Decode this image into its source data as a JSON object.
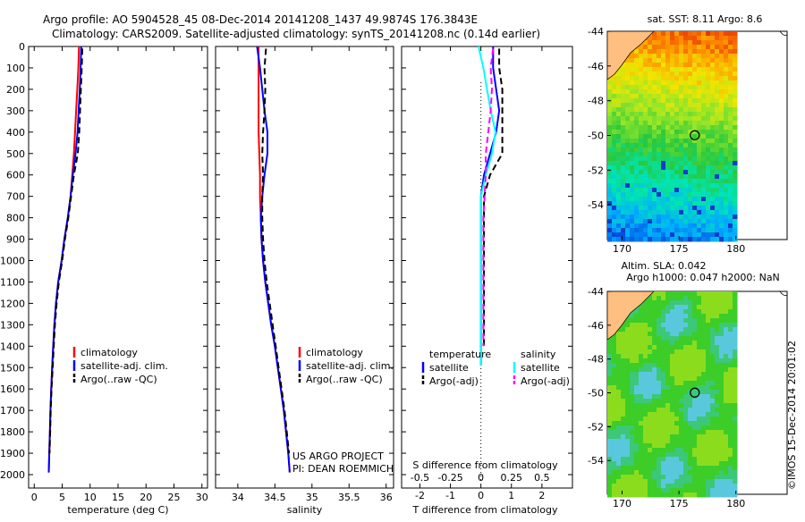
{
  "header": {
    "line1": "Argo profile: AO 5904528_45 08-Dec-2014 20141208_1437 49.9874S 176.3843E",
    "line2": "Climatology: CARS2009. Satellite-adjusted climatology: synTS_20141208.nc (0.14d earlier)"
  },
  "colors": {
    "climatology": "#ff0000",
    "satellite": "#0000ff",
    "argo": "#000000",
    "salinity_satellite": "#00ffff",
    "salinity_argo": "#ff00ff",
    "land": "#ffbf80"
  },
  "chart_data": [
    {
      "type": "line",
      "xlabel": "temperature (deg C)",
      "xlim": [
        -1,
        31
      ],
      "xticks": [
        0,
        5,
        10,
        15,
        20,
        25,
        30
      ],
      "ylim": [
        0,
        2050
      ],
      "yticks": [
        0,
        100,
        200,
        300,
        400,
        500,
        600,
        700,
        800,
        900,
        1000,
        1100,
        1200,
        1300,
        1400,
        1500,
        1600,
        1700,
        1800,
        1900,
        2000
      ],
      "y_reversed": true,
      "legend": [
        "climatology",
        "satellite-adj. clim.",
        "Argo(..raw -QC)"
      ],
      "series": [
        {
          "name": "climatology",
          "dash": "solid",
          "x": [
            8.0,
            7.9,
            7.7,
            7.5,
            7.3,
            7.1,
            6.8,
            6.5,
            6.0,
            5.4,
            4.9,
            4.3,
            3.9,
            3.6,
            3.4,
            3.2,
            3.05,
            2.9,
            2.8,
            2.7,
            2.6
          ],
          "y": [
            0,
            100,
            200,
            300,
            400,
            500,
            600,
            700,
            800,
            900,
            1000,
            1100,
            1200,
            1300,
            1400,
            1500,
            1600,
            1700,
            1800,
            1900,
            1990
          ]
        },
        {
          "name": "satellite-adj. clim.",
          "dash": "solid",
          "x": [
            8.4,
            8.3,
            8.15,
            7.95,
            7.75,
            7.4,
            6.9,
            6.5,
            6.0,
            5.4,
            4.9,
            4.3,
            3.9,
            3.6,
            3.4,
            3.2,
            3.05,
            2.9,
            2.8,
            2.7,
            2.6
          ],
          "y": [
            0,
            100,
            200,
            300,
            400,
            500,
            600,
            700,
            800,
            900,
            1000,
            1100,
            1200,
            1300,
            1400,
            1500,
            1600,
            1700,
            1800,
            1900,
            1990
          ]
        },
        {
          "name": "Argo(..raw -QC)",
          "dash": "dash",
          "x": [
            8.6,
            8.5,
            8.35,
            8.2,
            8.05,
            7.8,
            7.1,
            6.6,
            6.1,
            5.5,
            5.0,
            4.4,
            4.0,
            3.7,
            3.5,
            3.3,
            3.1,
            2.95,
            2.85,
            2.75
          ],
          "y": [
            10,
            100,
            200,
            300,
            400,
            500,
            600,
            700,
            800,
            900,
            1000,
            1100,
            1200,
            1300,
            1400,
            1500,
            1600,
            1700,
            1800,
            1900
          ]
        }
      ]
    },
    {
      "type": "line",
      "xlabel": "salinity",
      "xlim": [
        33.7,
        36.1
      ],
      "xticks": [
        34,
        34.5,
        35,
        35.5,
        36
      ],
      "xticklabels": [
        "34",
        "34.5",
        "35",
        "35.5",
        "36"
      ],
      "ylim": [
        0,
        2050
      ],
      "y_reversed": true,
      "legend": [
        "climatology",
        "satellite-adj. clim.",
        "Argo(..raw -QC)"
      ],
      "annotation": [
        "US ARGO PROJECT",
        "PI: DEAN ROEMMICH"
      ],
      "series": [
        {
          "name": "climatology",
          "dash": "solid",
          "x": [
            34.28,
            34.28,
            34.28,
            34.28,
            34.28,
            34.29,
            34.3,
            34.3,
            34.31,
            34.32,
            34.34,
            34.37,
            34.41,
            34.45,
            34.5,
            34.54,
            34.58,
            34.62,
            34.65,
            34.68,
            34.7
          ],
          "y": [
            0,
            100,
            200,
            300,
            400,
            500,
            600,
            700,
            800,
            900,
            1000,
            1100,
            1200,
            1300,
            1400,
            1500,
            1600,
            1700,
            1800,
            1900,
            1990
          ]
        },
        {
          "name": "satellite-adj. clim.",
          "dash": "solid",
          "x": [
            34.26,
            34.3,
            34.33,
            34.36,
            34.4,
            34.4,
            34.36,
            34.33,
            34.31,
            34.32,
            34.34,
            34.37,
            34.41,
            34.45,
            34.5,
            34.54,
            34.58,
            34.62,
            34.65,
            34.68,
            34.7
          ],
          "y": [
            0,
            100,
            200,
            300,
            400,
            500,
            600,
            700,
            800,
            900,
            1000,
            1100,
            1200,
            1300,
            1400,
            1500,
            1600,
            1700,
            1800,
            1900,
            1990
          ]
        },
        {
          "name": "Argo(..raw -QC)",
          "dash": "dash",
          "x": [
            34.38,
            34.36,
            34.37,
            34.36,
            34.34,
            34.33,
            34.34,
            34.33,
            34.33,
            34.34,
            34.36,
            34.39,
            34.43,
            34.47,
            34.51,
            34.55,
            34.59,
            34.63,
            34.66,
            34.69
          ],
          "y": [
            10,
            100,
            200,
            300,
            400,
            500,
            600,
            700,
            800,
            900,
            1000,
            1100,
            1200,
            1300,
            1400,
            1500,
            1600,
            1700,
            1800,
            1900
          ]
        }
      ]
    },
    {
      "type": "line",
      "xlabel": "T difference from climatology",
      "top_label": "S difference from climatology",
      "xlim": [
        -2.6,
        3.0
      ],
      "xticks": [
        -2,
        -1,
        0,
        1,
        2
      ],
      "s_xticks": [
        -0.5,
        -0.25,
        0,
        0.25,
        0.5
      ],
      "ylim": [
        0,
        2050
      ],
      "y_reversed": true,
      "legend": {
        "temperature_heading": "temperature",
        "salinity_heading": "salinity",
        "satellite_label": "satellite",
        "argo_label": "Argo(-adj)"
      },
      "series": [
        {
          "name": "satellite",
          "group": "temperature",
          "dash": "solid",
          "x": [
            0.4,
            0.4,
            0.5,
            0.6,
            0.5,
            0.3,
            0.1,
            0.0,
            0.0,
            0.0,
            0.0,
            0.0,
            0.0,
            0.0,
            0.0,
            0.0
          ],
          "y": [
            0,
            100,
            200,
            300,
            400,
            500,
            600,
            700,
            800,
            900,
            1000,
            1100,
            1200,
            1300,
            1400,
            1490
          ]
        },
        {
          "name": "Argo(-adj)",
          "group": "temperature",
          "dash": "dash",
          "x": [
            0.6,
            0.6,
            0.7,
            0.7,
            0.7,
            0.7,
            0.3,
            0.1,
            0.1,
            0.1,
            0.1,
            0.1,
            0.1,
            0.1,
            0.1
          ],
          "y": [
            10,
            100,
            200,
            300,
            400,
            500,
            600,
            700,
            800,
            900,
            1000,
            1100,
            1200,
            1300,
            1400
          ]
        },
        {
          "name": "satellite",
          "group": "salinity",
          "dash": "solid",
          "x": [
            -0.02,
            0.02,
            0.05,
            0.08,
            0.12,
            0.09,
            0.04,
            0.0,
            0.0,
            0.0,
            0.0,
            0.0,
            0.0,
            0.0,
            0.0,
            0.0
          ],
          "y": [
            0,
            100,
            200,
            300,
            400,
            500,
            600,
            700,
            800,
            900,
            1000,
            1100,
            1200,
            1300,
            1400,
            1490
          ]
        },
        {
          "name": "Argo(-adj)",
          "group": "salinity",
          "dash": "dash",
          "x": [
            0.1,
            0.08,
            0.09,
            0.08,
            0.06,
            0.04,
            0.04,
            0.03,
            0.02,
            0.02,
            0.02,
            0.02,
            0.02,
            0.02,
            0.02
          ],
          "y": [
            10,
            100,
            200,
            300,
            400,
            500,
            600,
            700,
            800,
            900,
            1000,
            1100,
            1200,
            1300,
            1400
          ]
        }
      ]
    },
    {
      "type": "heatmap",
      "title": "sat. SST: 8.11 Argo: 8.6",
      "xlim": [
        168.7,
        184.5
      ],
      "ylim": [
        -56,
        -44
      ],
      "xticks": [
        170,
        175,
        180
      ],
      "yticks": [
        -44,
        -46,
        -48,
        -50,
        -52,
        -54
      ],
      "profile_marker": {
        "lon": 176.3843,
        "lat": -49.9874
      }
    },
    {
      "type": "heatmap",
      "title": [
        "Altim. SLA: 0.042",
        "Argo h1000: 0.047 h2000: NaN"
      ],
      "xlim": [
        168.7,
        184.5
      ],
      "ylim": [
        -56,
        -44
      ],
      "xticks": [
        170,
        175,
        180
      ],
      "yticks": [
        -44,
        -46,
        -48,
        -50,
        -52,
        -54
      ],
      "profile_marker": {
        "lon": 176.3843,
        "lat": -49.9874
      }
    }
  ],
  "footer": {
    "credit": "©IMOS 15-Dec-2014 20:01:02"
  }
}
